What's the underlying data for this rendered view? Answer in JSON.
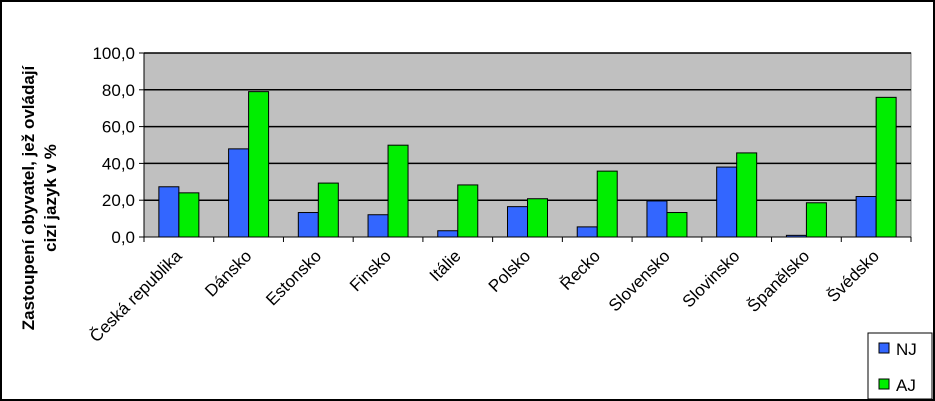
{
  "chart_data": {
    "type": "bar",
    "categories": [
      "Česká republika",
      "Dánsko",
      "Estonsko",
      "Finsko",
      "Itálie",
      "Polsko",
      "Řecko",
      "Slovensko",
      "Slovinsko",
      "Španělsko",
      "Švédsko"
    ],
    "series": [
      {
        "name": "NJ",
        "color": "#3366ff",
        "values": [
          27.3,
          47.9,
          13.3,
          12.1,
          3.4,
          16.5,
          5.5,
          19.6,
          38.0,
          0.9,
          22.0
        ]
      },
      {
        "name": "AJ",
        "color": "#00ee00",
        "values": [
          24.0,
          79.0,
          29.3,
          49.9,
          28.3,
          20.8,
          35.8,
          13.3,
          45.7,
          18.6,
          75.9
        ]
      }
    ],
    "ylabel_line1": "Zastoupení obyvatel, jež ovládají",
    "ylabel_line2": "cizí jazyk  v %",
    "ylim": [
      0,
      100
    ],
    "yticks": [
      "0,0",
      "20,0",
      "40,0",
      "60,0",
      "80,0",
      "100,0"
    ],
    "grid": true,
    "legend_position": "bottom-right",
    "plot_background": "#c0c0c0"
  }
}
